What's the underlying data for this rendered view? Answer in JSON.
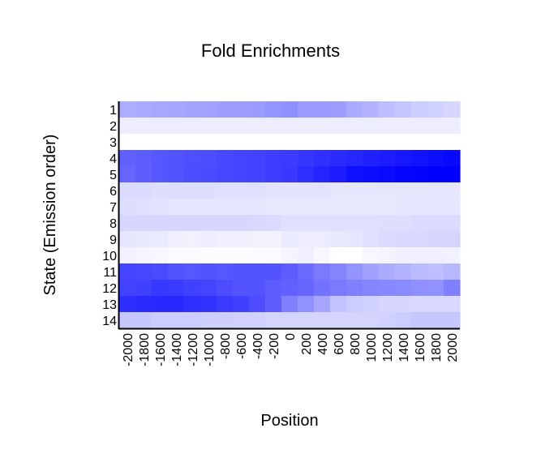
{
  "chart_data": {
    "type": "heatmap",
    "title": "Fold Enrichments",
    "xlabel": "Position",
    "ylabel": "State (Emission order)",
    "x": [
      "-2000",
      "-1800",
      "-1600",
      "-1400",
      "-1200",
      "-1000",
      "-800",
      "-600",
      "-400",
      "-200",
      "0",
      "200",
      "400",
      "600",
      "800",
      "1000",
      "1200",
      "1400",
      "1600",
      "1800",
      "2000"
    ],
    "x_tick_labels": [
      "-2000",
      "-1800",
      "-1600",
      "-1400",
      "-1200",
      "-1000",
      "-800",
      "-600",
      "-400",
      "-200",
      "0",
      "200",
      "400",
      "600",
      "800",
      "1000",
      "1200",
      "1400",
      "1600",
      "1800",
      "2000"
    ],
    "y": [
      "1",
      "2",
      "3",
      "4",
      "5",
      "6",
      "7",
      "8",
      "9",
      "10",
      "11",
      "12",
      "13",
      "14"
    ],
    "color_scale": {
      "low": "#ffffff",
      "high": "#0000ff"
    },
    "grid": false,
    "legend": "none",
    "values": [
      [
        0.32,
        0.33,
        0.34,
        0.35,
        0.36,
        0.37,
        0.38,
        0.38,
        0.39,
        0.42,
        0.44,
        0.4,
        0.4,
        0.38,
        0.33,
        0.3,
        0.26,
        0.23,
        0.2,
        0.18,
        0.16
      ],
      [
        0.07,
        0.07,
        0.07,
        0.07,
        0.07,
        0.07,
        0.07,
        0.07,
        0.07,
        0.07,
        0.07,
        0.07,
        0.07,
        0.07,
        0.07,
        0.07,
        0.07,
        0.07,
        0.07,
        0.07,
        0.07
      ],
      [
        0.0,
        0.0,
        0.0,
        0.0,
        0.0,
        0.0,
        0.0,
        0.0,
        0.0,
        0.0,
        0.0,
        0.0,
        0.0,
        0.0,
        0.0,
        0.0,
        0.0,
        0.0,
        0.0,
        0.0,
        0.0
      ],
      [
        0.62,
        0.64,
        0.66,
        0.68,
        0.69,
        0.7,
        0.72,
        0.73,
        0.74,
        0.76,
        0.77,
        0.79,
        0.81,
        0.83,
        0.85,
        0.87,
        0.89,
        0.91,
        0.93,
        0.95,
        0.97
      ],
      [
        0.6,
        0.63,
        0.66,
        0.68,
        0.7,
        0.71,
        0.72,
        0.73,
        0.74,
        0.76,
        0.78,
        0.82,
        0.86,
        0.89,
        0.94,
        0.95,
        0.96,
        0.98,
        0.99,
        1.0,
        1.0
      ],
      [
        0.14,
        0.14,
        0.13,
        0.13,
        0.13,
        0.13,
        0.12,
        0.12,
        0.12,
        0.11,
        0.11,
        0.11,
        0.11,
        0.1,
        0.1,
        0.1,
        0.1,
        0.1,
        0.1,
        0.1,
        0.1
      ],
      [
        0.13,
        0.12,
        0.11,
        0.1,
        0.1,
        0.1,
        0.1,
        0.1,
        0.1,
        0.09,
        0.09,
        0.09,
        0.09,
        0.09,
        0.09,
        0.09,
        0.09,
        0.1,
        0.1,
        0.1,
        0.1
      ],
      [
        0.16,
        0.16,
        0.16,
        0.16,
        0.16,
        0.16,
        0.16,
        0.16,
        0.15,
        0.14,
        0.12,
        0.12,
        0.12,
        0.12,
        0.12,
        0.12,
        0.13,
        0.13,
        0.14,
        0.14,
        0.14
      ],
      [
        0.1,
        0.09,
        0.08,
        0.06,
        0.05,
        0.07,
        0.06,
        0.06,
        0.05,
        0.05,
        0.08,
        0.07,
        0.07,
        0.09,
        0.1,
        0.12,
        0.14,
        0.15,
        0.15,
        0.16,
        0.17
      ],
      [
        0.05,
        0.04,
        0.03,
        0.02,
        0.02,
        0.01,
        0.01,
        0.01,
        0.02,
        0.02,
        0.04,
        0.06,
        0.03,
        0.0,
        0.0,
        0.03,
        0.04,
        0.06,
        0.06,
        0.06,
        0.05
      ],
      [
        0.73,
        0.72,
        0.71,
        0.68,
        0.66,
        0.67,
        0.66,
        0.67,
        0.68,
        0.67,
        0.64,
        0.58,
        0.52,
        0.48,
        0.42,
        0.37,
        0.33,
        0.3,
        0.27,
        0.25,
        0.28
      ],
      [
        0.74,
        0.75,
        0.78,
        0.77,
        0.75,
        0.73,
        0.7,
        0.67,
        0.67,
        0.64,
        0.62,
        0.6,
        0.55,
        0.52,
        0.5,
        0.48,
        0.47,
        0.46,
        0.44,
        0.43,
        0.5
      ],
      [
        0.82,
        0.83,
        0.84,
        0.84,
        0.82,
        0.8,
        0.77,
        0.75,
        0.7,
        0.63,
        0.5,
        0.43,
        0.35,
        0.24,
        0.2,
        0.18,
        0.16,
        0.16,
        0.15,
        0.15,
        0.15
      ],
      [
        0.22,
        0.22,
        0.2,
        0.2,
        0.2,
        0.19,
        0.19,
        0.18,
        0.18,
        0.17,
        0.17,
        0.17,
        0.17,
        0.17,
        0.17,
        0.17,
        0.18,
        0.2,
        0.22,
        0.22,
        0.22
      ]
    ]
  }
}
